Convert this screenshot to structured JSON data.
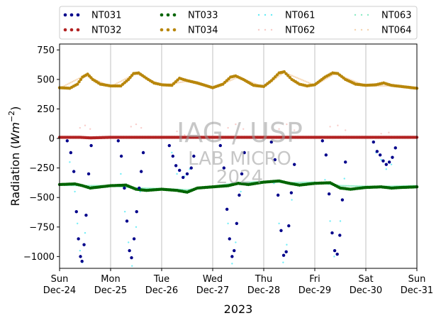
{
  "chart_data": {
    "type": "scatter",
    "title": "",
    "xlabel": "2023",
    "ylabel_prefix": "Radiation (",
    "ylabel_unit": "Wm",
    "ylabel_exp": "−2",
    "ylabel_suffix": ")",
    "ylim": [
      -1100,
      800
    ],
    "yticks": [
      750,
      500,
      250,
      0,
      -250,
      -500,
      -750,
      -1000
    ],
    "ytick_labels": [
      "750",
      "500",
      "250",
      "0",
      "−250",
      "−500",
      "−750",
      "−1000"
    ],
    "xlim_days": [
      0,
      7
    ],
    "xticks": [
      {
        "day": "Sun",
        "date": "Dec-24"
      },
      {
        "day": "Mon",
        "date": "Dec-25"
      },
      {
        "day": "Tue",
        "date": "Dec-26"
      },
      {
        "day": "Wed",
        "date": "Dec-27"
      },
      {
        "day": "Thu",
        "date": "Dec-28"
      },
      {
        "day": "Fri",
        "date": "Dec-29"
      },
      {
        "day": "Sat",
        "date": "Dec-30"
      },
      {
        "day": "Sun",
        "date": "Dec-31"
      }
    ],
    "grid": "vertical",
    "legend_position": "top",
    "watermark": [
      "IAG / USP",
      "LAB MICRO",
      "2024"
    ],
    "series": [
      {
        "name": "NT031",
        "color": "#00008b",
        "style": "dot",
        "points": [
          [
            0.15,
            -20
          ],
          [
            0.22,
            -120
          ],
          [
            0.28,
            -280
          ],
          [
            0.33,
            -620
          ],
          [
            0.37,
            -850
          ],
          [
            0.41,
            -1000
          ],
          [
            0.44,
            -1040
          ],
          [
            0.48,
            -900
          ],
          [
            0.52,
            -650
          ],
          [
            0.57,
            -300
          ],
          [
            0.62,
            -60
          ],
          [
            1.15,
            -20
          ],
          [
            1.21,
            -150
          ],
          [
            1.27,
            -420
          ],
          [
            1.32,
            -700
          ],
          [
            1.37,
            -950
          ],
          [
            1.41,
            -1010
          ],
          [
            1.46,
            -850
          ],
          [
            1.51,
            -620
          ],
          [
            1.56,
            -420
          ],
          [
            1.6,
            -280
          ],
          [
            1.64,
            -120
          ],
          [
            2.15,
            -60
          ],
          [
            2.22,
            -150
          ],
          [
            2.28,
            -230
          ],
          [
            2.35,
            -270
          ],
          [
            2.42,
            -330
          ],
          [
            2.5,
            -300
          ],
          [
            2.58,
            -250
          ],
          [
            2.63,
            -150
          ],
          [
            3.15,
            -60
          ],
          [
            3.22,
            -250
          ],
          [
            3.28,
            -600
          ],
          [
            3.33,
            -850
          ],
          [
            3.38,
            -1000
          ],
          [
            3.42,
            -950
          ],
          [
            3.47,
            -720
          ],
          [
            3.52,
            -480
          ],
          [
            3.57,
            -300
          ],
          [
            3.62,
            -120
          ],
          [
            4.15,
            -30
          ],
          [
            4.22,
            -180
          ],
          [
            4.28,
            -480
          ],
          [
            4.34,
            -780
          ],
          [
            4.39,
            -990
          ],
          [
            4.44,
            -960
          ],
          [
            4.49,
            -740
          ],
          [
            4.54,
            -460
          ],
          [
            4.6,
            -220
          ],
          [
            5.15,
            -20
          ],
          [
            5.22,
            -140
          ],
          [
            5.28,
            -470
          ],
          [
            5.34,
            -800
          ],
          [
            5.39,
            -950
          ],
          [
            5.44,
            -980
          ],
          [
            5.49,
            -820
          ],
          [
            5.54,
            -520
          ],
          [
            5.6,
            -200
          ],
          [
            6.15,
            -30
          ],
          [
            6.22,
            -110
          ],
          [
            6.28,
            -140
          ],
          [
            6.34,
            -190
          ],
          [
            6.4,
            -220
          ],
          [
            6.46,
            -200
          ],
          [
            6.52,
            -160
          ],
          [
            6.58,
            -80
          ]
        ]
      },
      {
        "name": "NT032",
        "color": "#b22222",
        "style": "dot",
        "points": [
          [
            0.0,
            10
          ],
          [
            0.4,
            10
          ],
          [
            0.6,
            5
          ],
          [
            1.0,
            10
          ],
          [
            1.5,
            10
          ],
          [
            2.0,
            10
          ],
          [
            2.5,
            10
          ],
          [
            3.0,
            10
          ],
          [
            3.5,
            10
          ],
          [
            4.0,
            10
          ],
          [
            4.5,
            10
          ],
          [
            5.0,
            10
          ],
          [
            5.5,
            10
          ],
          [
            6.0,
            10
          ],
          [
            6.5,
            10
          ],
          [
            7.0,
            10
          ]
        ]
      },
      {
        "name": "NT033",
        "color": "#006400",
        "style": "dot",
        "points": [
          [
            0.0,
            -390
          ],
          [
            0.3,
            -385
          ],
          [
            0.45,
            -400
          ],
          [
            0.6,
            -420
          ],
          [
            0.8,
            -410
          ],
          [
            1.0,
            -400
          ],
          [
            1.3,
            -395
          ],
          [
            1.5,
            -430
          ],
          [
            1.7,
            -440
          ],
          [
            2.0,
            -430
          ],
          [
            2.3,
            -440
          ],
          [
            2.5,
            -455
          ],
          [
            2.7,
            -420
          ],
          [
            3.0,
            -410
          ],
          [
            3.3,
            -400
          ],
          [
            3.5,
            -380
          ],
          [
            3.7,
            -390
          ],
          [
            4.0,
            -370
          ],
          [
            4.3,
            -360
          ],
          [
            4.5,
            -380
          ],
          [
            4.7,
            -395
          ],
          [
            5.0,
            -380
          ],
          [
            5.3,
            -375
          ],
          [
            5.5,
            -420
          ],
          [
            5.7,
            -430
          ],
          [
            6.0,
            -415
          ],
          [
            6.3,
            -410
          ],
          [
            6.5,
            -420
          ],
          [
            6.7,
            -415
          ],
          [
            7.0,
            -410
          ]
        ]
      },
      {
        "name": "NT034",
        "color": "#b8860b",
        "style": "dot",
        "points": [
          [
            0.0,
            430
          ],
          [
            0.2,
            425
          ],
          [
            0.35,
            460
          ],
          [
            0.45,
            520
          ],
          [
            0.55,
            545
          ],
          [
            0.65,
            500
          ],
          [
            0.8,
            460
          ],
          [
            1.0,
            445
          ],
          [
            1.2,
            445
          ],
          [
            1.35,
            500
          ],
          [
            1.45,
            550
          ],
          [
            1.55,
            555
          ],
          [
            1.7,
            510
          ],
          [
            1.85,
            470
          ],
          [
            2.0,
            455
          ],
          [
            2.2,
            450
          ],
          [
            2.35,
            510
          ],
          [
            2.5,
            490
          ],
          [
            2.7,
            470
          ],
          [
            3.0,
            430
          ],
          [
            3.2,
            460
          ],
          [
            3.35,
            520
          ],
          [
            3.45,
            530
          ],
          [
            3.6,
            500
          ],
          [
            3.8,
            450
          ],
          [
            4.0,
            440
          ],
          [
            4.15,
            490
          ],
          [
            4.3,
            555
          ],
          [
            4.4,
            565
          ],
          [
            4.55,
            500
          ],
          [
            4.7,
            460
          ],
          [
            4.85,
            445
          ],
          [
            5.0,
            455
          ],
          [
            5.2,
            520
          ],
          [
            5.35,
            555
          ],
          [
            5.45,
            550
          ],
          [
            5.6,
            500
          ],
          [
            5.8,
            460
          ],
          [
            6.0,
            450
          ],
          [
            6.2,
            455
          ],
          [
            6.35,
            470
          ],
          [
            6.5,
            450
          ],
          [
            6.7,
            440
          ],
          [
            7.0,
            425
          ]
        ]
      },
      {
        "name": "NT061",
        "color": "#00e0f0",
        "style": "faint",
        "points": [
          [
            0.2,
            -200
          ],
          [
            0.3,
            -450
          ],
          [
            0.35,
            -720
          ],
          [
            0.4,
            -950
          ],
          [
            0.45,
            -1050
          ],
          [
            0.5,
            -800
          ],
          [
            0.55,
            -420
          ],
          [
            1.2,
            -300
          ],
          [
            1.28,
            -620
          ],
          [
            1.35,
            -880
          ],
          [
            1.42,
            -1080
          ],
          [
            1.5,
            -750
          ],
          [
            1.58,
            -450
          ],
          [
            2.2,
            -120
          ],
          [
            2.3,
            -300
          ],
          [
            2.45,
            -320
          ],
          [
            2.55,
            -260
          ],
          [
            3.2,
            -400
          ],
          [
            3.3,
            -720
          ],
          [
            3.38,
            -1060
          ],
          [
            3.45,
            -880
          ],
          [
            3.55,
            -450
          ],
          [
            4.2,
            -380
          ],
          [
            4.3,
            -720
          ],
          [
            4.38,
            -1050
          ],
          [
            4.45,
            -900
          ],
          [
            4.55,
            -520
          ],
          [
            5.2,
            -350
          ],
          [
            5.3,
            -700
          ],
          [
            5.38,
            -1000
          ],
          [
            5.5,
            -700
          ],
          [
            5.58,
            -340
          ],
          [
            6.2,
            -120
          ],
          [
            6.3,
            -180
          ],
          [
            6.4,
            -260
          ],
          [
            6.5,
            -220
          ]
        ]
      },
      {
        "name": "NT062",
        "color": "#f4a6a0",
        "style": "faint",
        "points": [
          [
            0.4,
            90
          ],
          [
            0.5,
            110
          ],
          [
            0.6,
            80
          ],
          [
            1.4,
            100
          ],
          [
            1.5,
            120
          ],
          [
            1.6,
            90
          ],
          [
            2.3,
            60
          ],
          [
            2.45,
            30
          ],
          [
            3.3,
            90
          ],
          [
            3.45,
            120
          ],
          [
            3.6,
            80
          ],
          [
            4.3,
            80
          ],
          [
            4.45,
            120
          ],
          [
            4.6,
            70
          ],
          [
            5.3,
            100
          ],
          [
            5.45,
            110
          ],
          [
            5.6,
            70
          ],
          [
            6.3,
            40
          ],
          [
            6.45,
            50
          ]
        ]
      },
      {
        "name": "NT063",
        "color": "#40e0a0",
        "style": "faint",
        "points": [
          [
            0.0,
            -395
          ],
          [
            0.5,
            -400
          ],
          [
            1.0,
            -400
          ],
          [
            1.5,
            -420
          ],
          [
            2.0,
            -425
          ],
          [
            2.5,
            -435
          ],
          [
            3.0,
            -405
          ],
          [
            3.5,
            -375
          ],
          [
            4.0,
            -365
          ],
          [
            4.5,
            -375
          ],
          [
            5.0,
            -370
          ],
          [
            5.5,
            -400
          ],
          [
            6.0,
            -405
          ],
          [
            6.5,
            -405
          ],
          [
            7.0,
            -400
          ]
        ]
      },
      {
        "name": "NT064",
        "color": "#f0b878",
        "style": "faint",
        "points": [
          [
            0.0,
            425
          ],
          [
            0.5,
            535
          ],
          [
            1.0,
            440
          ],
          [
            1.5,
            550
          ],
          [
            2.0,
            450
          ],
          [
            2.5,
            485
          ],
          [
            3.0,
            425
          ],
          [
            3.5,
            520
          ],
          [
            4.0,
            435
          ],
          [
            4.4,
            560
          ],
          [
            5.0,
            450
          ],
          [
            5.4,
            550
          ],
          [
            6.0,
            445
          ],
          [
            6.5,
            445
          ],
          [
            7.0,
            420
          ]
        ]
      }
    ]
  }
}
